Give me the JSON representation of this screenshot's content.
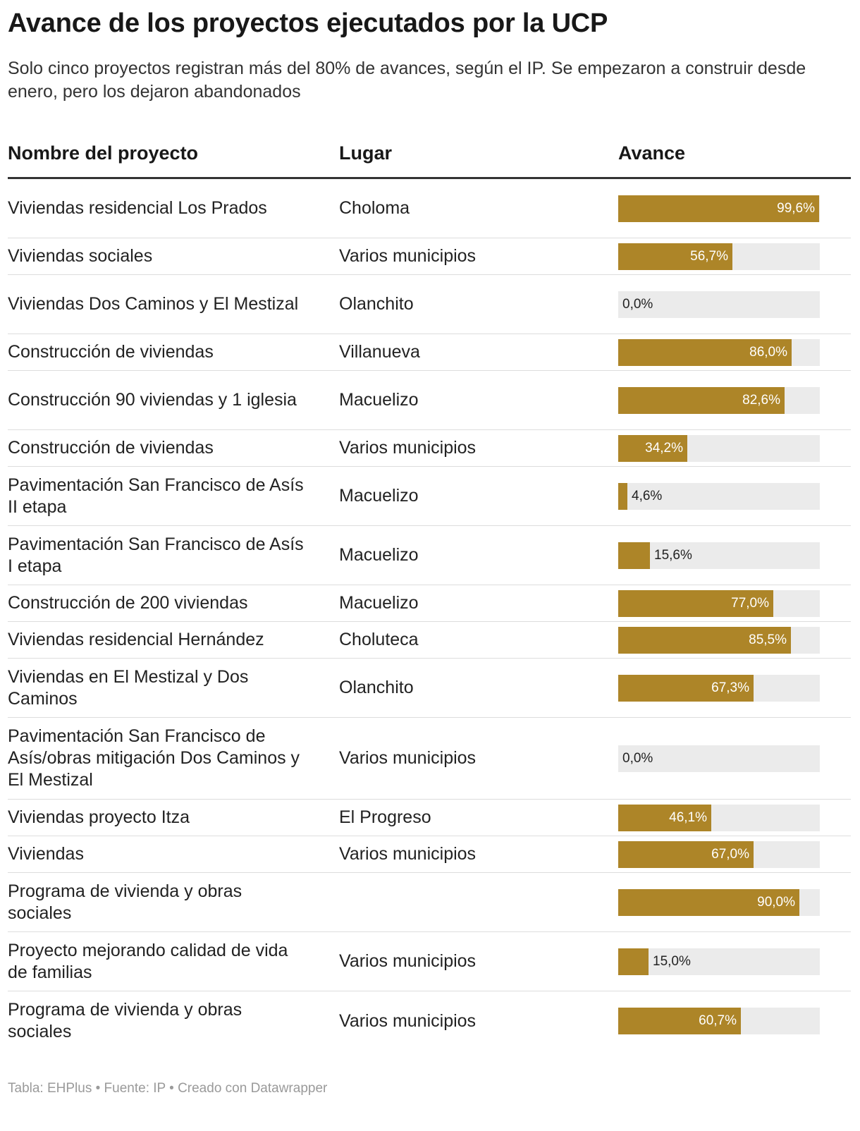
{
  "title": "Avance de los proyectos ejecutados por la UCP",
  "subtitle": "Solo cinco proyectos registran más del 80% de avances, según el IP. Se empezaron a construir desde enero, pero los dejaron abandonados",
  "headers": {
    "name": "Nombre del proyecto",
    "place": "Lugar",
    "progress": "Avance"
  },
  "colors": {
    "bar": "#ad8528",
    "track": "#ebebeb"
  },
  "chart_data": {
    "type": "table",
    "title": "Avance de los proyectos ejecutados por la UCP",
    "columns": [
      "Nombre del proyecto",
      "Lugar",
      "Avance"
    ],
    "xlim": [
      0,
      100
    ],
    "rows": [
      {
        "name": "Viviendas residencial Los Prados",
        "place": "Choloma",
        "value": 99.6,
        "label": "99,6%"
      },
      {
        "name": "Viviendas sociales",
        "place": "Varios municipios",
        "value": 56.7,
        "label": "56,7%"
      },
      {
        "name": "Viviendas Dos Caminos y El Mestizal",
        "place": "Olanchito",
        "value": 0.0,
        "label": "0,0%"
      },
      {
        "name": "Construcción de viviendas",
        "place": "Villanueva",
        "value": 86.0,
        "label": "86,0%"
      },
      {
        "name": "Construcción 90 viviendas y 1 iglesia",
        "place": "Macuelizo",
        "value": 82.6,
        "label": "82,6%"
      },
      {
        "name": "Construcción de viviendas",
        "place": "Varios municipios",
        "value": 34.2,
        "label": "34,2%"
      },
      {
        "name": "Pavimentación San Francisco de Asís II etapa",
        "place": "Macuelizo",
        "value": 4.6,
        "label": "4,6%"
      },
      {
        "name": "Pavimentación San Francisco de Asís I etapa",
        "place": "Macuelizo",
        "value": 15.6,
        "label": "15,6%"
      },
      {
        "name": "Construcción de 200 viviendas",
        "place": "Macuelizo",
        "value": 77.0,
        "label": "77,0%"
      },
      {
        "name": "Viviendas residencial Hernández",
        "place": "Choluteca",
        "value": 85.5,
        "label": "85,5%"
      },
      {
        "name": "Viviendas en El Mestizal y Dos Caminos",
        "place": "Olanchito",
        "value": 67.3,
        "label": "67,3%"
      },
      {
        "name": "Pavimentación San Francisco de Asís/obras mitigación Dos Caminos y El Mestizal",
        "place": "Varios municipios",
        "value": 0.0,
        "label": "0,0%"
      },
      {
        "name": "Viviendas proyecto Itza",
        "place": "El Progreso",
        "value": 46.1,
        "label": "46,1%"
      },
      {
        "name": "Viviendas",
        "place": "Varios municipios",
        "value": 67.0,
        "label": "67,0%"
      },
      {
        "name": "Programa de vivienda y obras sociales",
        "place": "",
        "value": 90.0,
        "label": "90,0%"
      },
      {
        "name": "Proyecto mejorando calidad de vida de familias",
        "place": "Varios municipios",
        "value": 15.0,
        "label": "15,0%"
      },
      {
        "name": "Programa de vivienda y obras sociales",
        "place": "Varios municipios",
        "value": 60.7,
        "label": "60,7%"
      }
    ]
  },
  "footer": "Tabla: EHPlus • Fuente: IP • Creado con Datawrapper"
}
